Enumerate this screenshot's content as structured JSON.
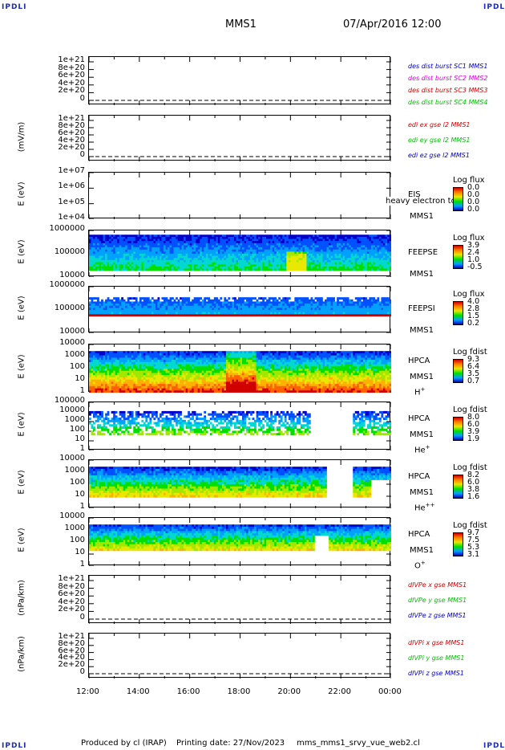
{
  "header": {
    "corner_left": "IPDLI",
    "corner_right": "IPDLI",
    "spacecraft": "MMS1",
    "datetime": "07/Apr/2016 12:00"
  },
  "footer": {
    "produced": "Produced by cl (IRAP)",
    "printing": "Printing date: 27/Nov/2023",
    "script": "mms_mms1_srvy_vue_web2.cl",
    "corner_left": "IPDLI",
    "corner_right": "IPDLI"
  },
  "colors": {
    "blue_series": "#0000c8",
    "green_series": "#00c000",
    "red_series": "#d00000",
    "magenta_series": "#e000e0",
    "corner": "#1d2bb8"
  },
  "chart_data": [
    {
      "type": "line",
      "ylabel": "",
      "ytick_labels": [
        "1e+21",
        "8e+20",
        "6e+20",
        "4e+20",
        "2e+20",
        "0"
      ],
      "legend": [
        "des dist burst SC1 MMS1",
        "des dist burst SC2 MMS2",
        "des dist burst SC3 MMS3",
        "des dist burst SC4 MMS4"
      ],
      "series_colors": [
        "#0000c8",
        "#e000e0",
        "#d00000",
        "#00c000"
      ],
      "ylim": [
        0,
        1e+21
      ],
      "zero_line": "dashed"
    },
    {
      "type": "line",
      "ylabel": "(mV/m)",
      "ytick_labels": [
        "1e+21",
        "8e+20",
        "6e+20",
        "4e+20",
        "2e+20",
        "0"
      ],
      "legend": [
        "edi ex gse l2 MMS1",
        "edi ey gse l2 MMS1",
        "edi ez gse l2 MMS1"
      ],
      "series_colors": [
        "#d00000",
        "#00c000",
        "#0000c8"
      ],
      "ylim": [
        0,
        1e+21
      ],
      "zero_line": "dashed"
    },
    {
      "type": "heatmap",
      "ylabel": "E (eV)",
      "ytick_labels": [
        "1e+07",
        "1e+06",
        "1e+05",
        "1e+04"
      ],
      "y_scale": "log",
      "ylim": [
        10000,
        10000000
      ],
      "instrument": "EIS",
      "spacecraft": "MMS1",
      "overlay_text": "heavy electron to",
      "colorbar_title": "Log flux",
      "colorbar_values": [
        "0.0",
        "0.0",
        "0.0",
        "0.0"
      ]
    },
    {
      "type": "heatmap",
      "ylabel": "E (eV)",
      "ytick_labels": [
        "1000000",
        "100000",
        "10000"
      ],
      "y_scale": "log",
      "ylim": [
        10000,
        1000000
      ],
      "instrument": "FEEPSE",
      "spacecraft": "MMS1",
      "colorbar_title": "Log flux",
      "colorbar_values": [
        "3.9",
        "2.4",
        "1.0",
        "-0.5"
      ]
    },
    {
      "type": "heatmap",
      "ylabel": "E (eV)",
      "ytick_labels": [
        "1000000",
        "100000",
        "10000"
      ],
      "y_scale": "log",
      "ylim": [
        10000,
        1000000
      ],
      "instrument": "FEEPSI",
      "spacecraft": "MMS1",
      "colorbar_title": "Log flux",
      "colorbar_values": [
        "4.0",
        "2.8",
        "1.5",
        "0.2"
      ]
    },
    {
      "type": "heatmap",
      "ylabel": "E (eV)",
      "ytick_labels": [
        "10000",
        "1000",
        "100",
        "10",
        "1"
      ],
      "y_scale": "log",
      "ylim": [
        1,
        40000
      ],
      "instrument": "HPCA",
      "spacecraft": "MMS1",
      "species": "H",
      "species_charge": "+",
      "colorbar_title": "Log fdist",
      "colorbar_values": [
        "9.3",
        "6.4",
        "3.5",
        "0.7"
      ]
    },
    {
      "type": "heatmap",
      "ylabel": "E (eV)",
      "ytick_labels": [
        "100000",
        "10000",
        "1000",
        "100",
        "10",
        "1"
      ],
      "y_scale": "log",
      "ylim": [
        1,
        100000
      ],
      "instrument": "HPCA",
      "spacecraft": "MMS1",
      "species": "He",
      "species_charge": "+",
      "colorbar_title": "Log fdist",
      "colorbar_values": [
        "8.0",
        "6.0",
        "3.9",
        "1.9"
      ]
    },
    {
      "type": "heatmap",
      "ylabel": "E (eV)",
      "ytick_labels": [
        "10000",
        "1000",
        "100",
        "10",
        "1"
      ],
      "y_scale": "log",
      "ylim": [
        1,
        40000
      ],
      "instrument": "HPCA",
      "spacecraft": "MMS1",
      "species": "He",
      "species_charge": "++",
      "colorbar_title": "Log fdist",
      "colorbar_values": [
        "8.2",
        "6.0",
        "3.8",
        "1.6"
      ]
    },
    {
      "type": "heatmap",
      "ylabel": "E (eV)",
      "ytick_labels": [
        "10000",
        "1000",
        "100",
        "10",
        "1"
      ],
      "y_scale": "log",
      "ylim": [
        1,
        40000
      ],
      "instrument": "HPCA",
      "spacecraft": "MMS1",
      "species": "O",
      "species_charge": "+",
      "colorbar_title": "Log fdist",
      "colorbar_values": [
        "9.7",
        "7.5",
        "5.3",
        "3.1"
      ]
    },
    {
      "type": "line",
      "ylabel": "(nPa/km)",
      "ytick_labels": [
        "1e+21",
        "8e+20",
        "6e+20",
        "4e+20",
        "2e+20",
        "0"
      ],
      "legend": [
        "dIVPe x gse MMS1",
        "dIVPe y gse MMS1",
        "dIVPe z gse MMS1"
      ],
      "series_colors": [
        "#d00000",
        "#00c000",
        "#0000c8"
      ],
      "ylim": [
        0,
        1e+21
      ],
      "zero_line": "dashed"
    },
    {
      "type": "line",
      "ylabel": "(nPa/km)",
      "ytick_labels": [
        "1e+21",
        "8e+20",
        "6e+20",
        "4e+20",
        "2e+20",
        "0"
      ],
      "legend": [
        "dIVPi x gse MMS1",
        "dIVPi y gse MMS1",
        "dIVPi z gse MMS1"
      ],
      "series_colors": [
        "#d00000",
        "#00c000",
        "#0000c8"
      ],
      "ylim": [
        0,
        1e+21
      ],
      "zero_line": "dashed"
    }
  ],
  "x_axis": {
    "tick_labels": [
      "12:00",
      "14:00",
      "16:00",
      "18:00",
      "20:00",
      "22:00",
      "00:00"
    ],
    "range_hours": [
      12,
      24
    ]
  }
}
